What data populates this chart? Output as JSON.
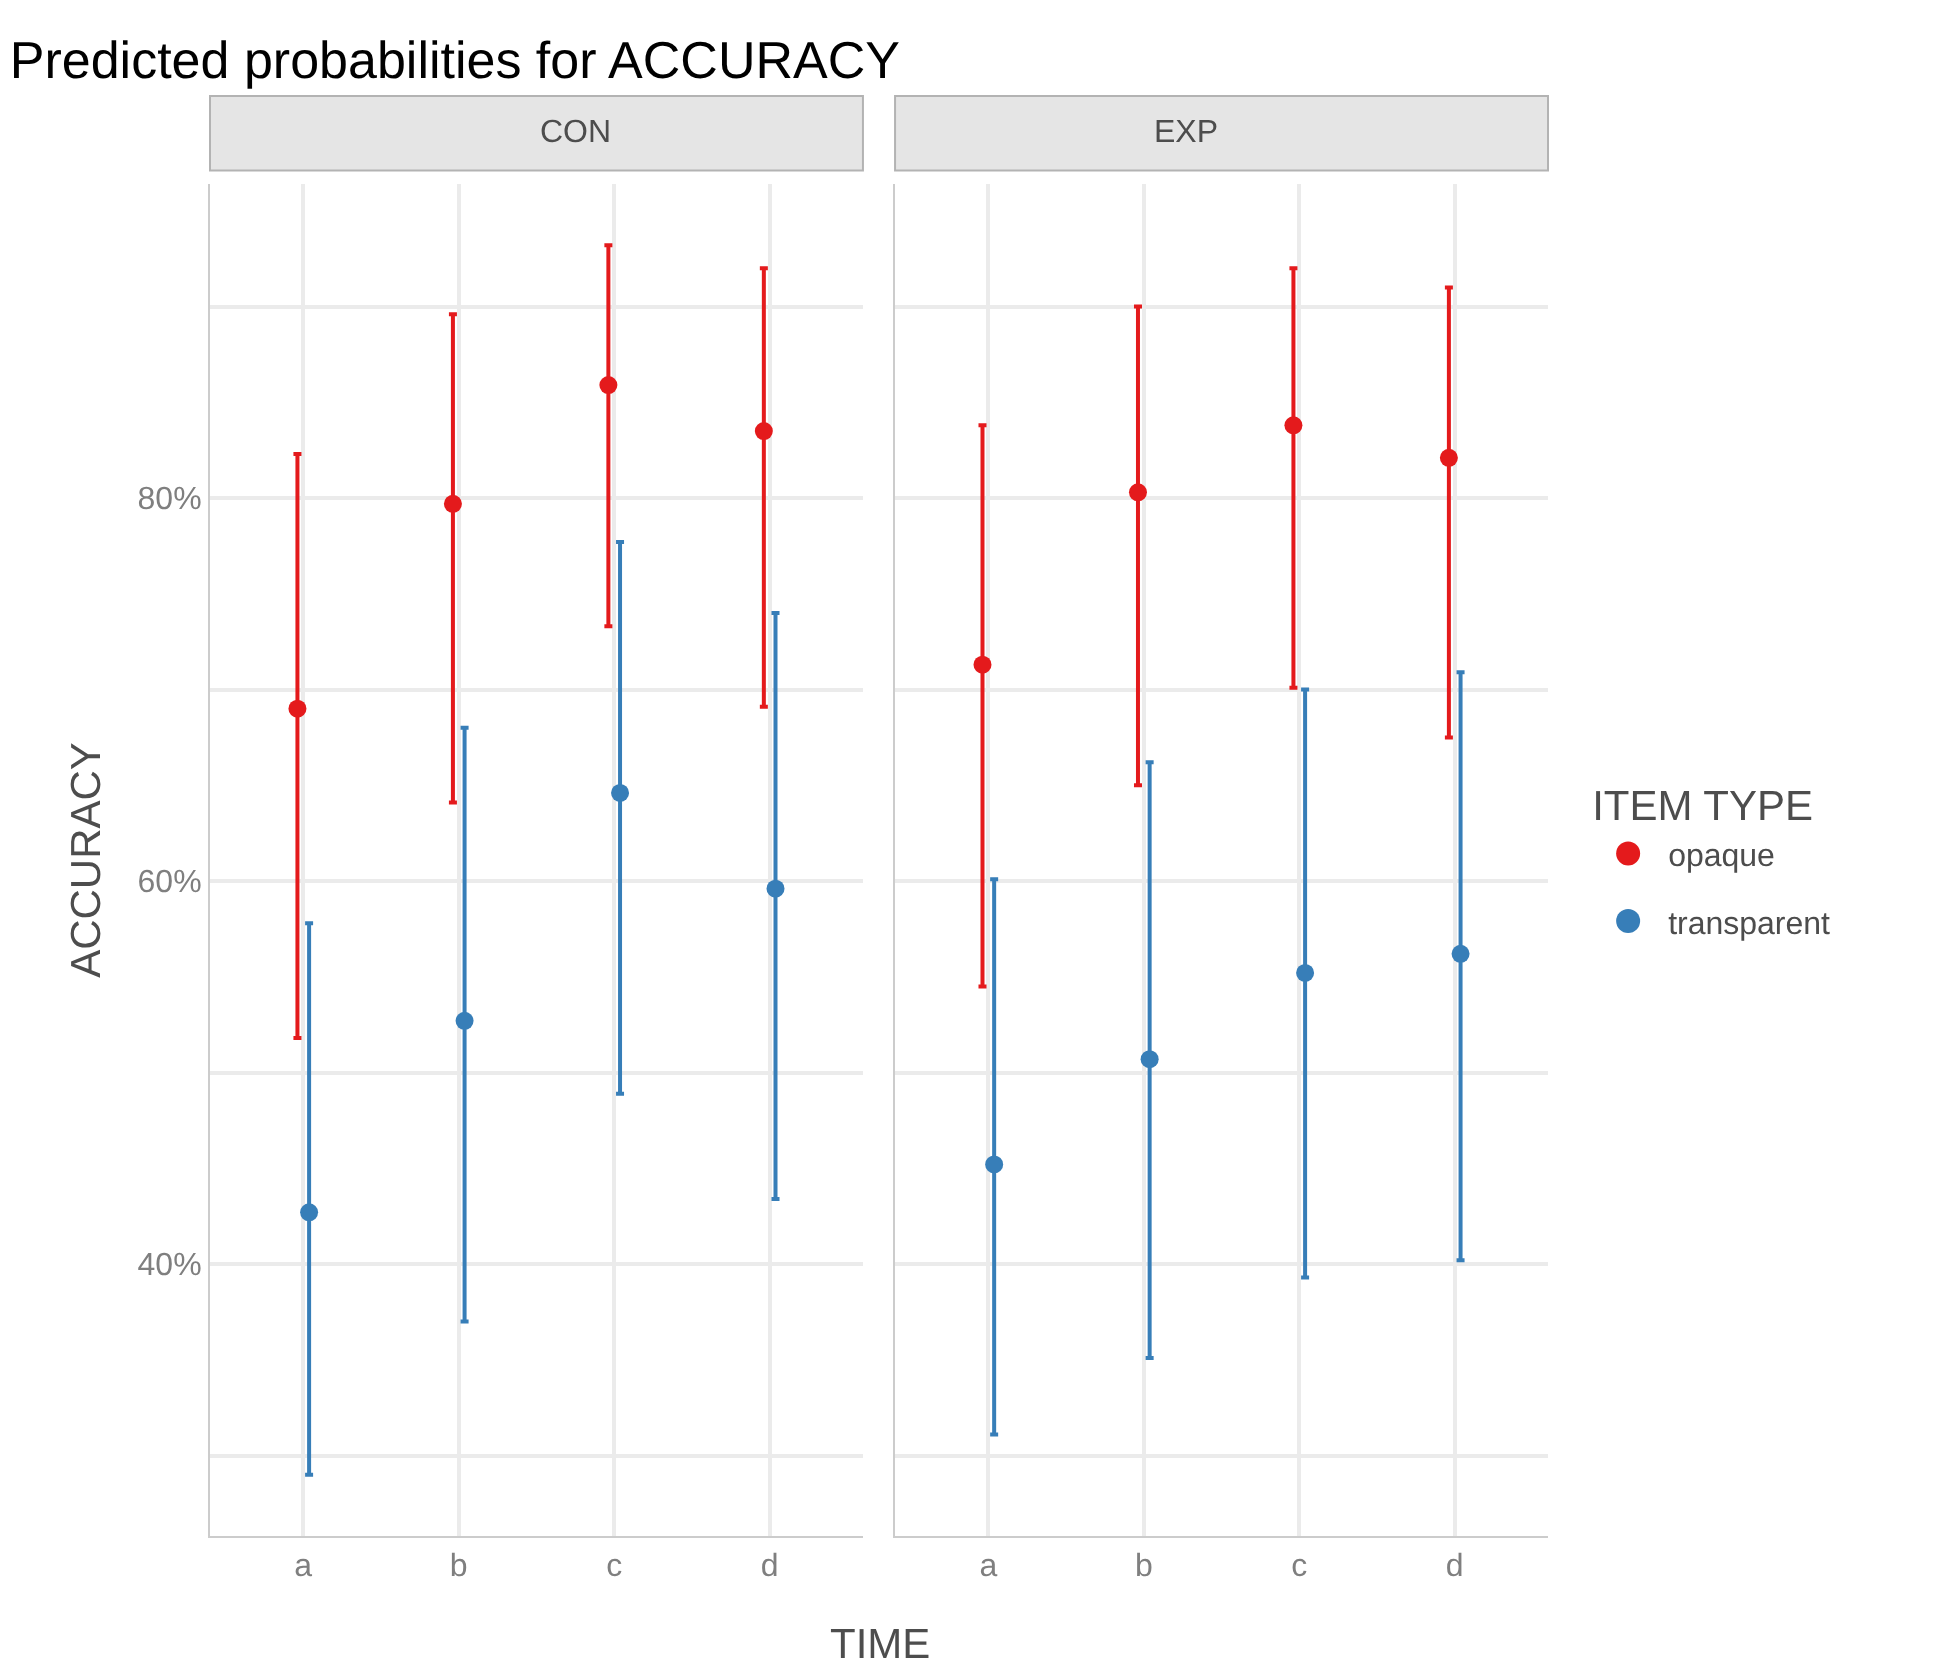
{
  "chart_data": [
    {
      "type": "scatter",
      "title": "Predicted probabilities for ACCURACY",
      "subtitle": "CON",
      "xlabel": "TIME",
      "ylabel": "ACCURACY",
      "legend_title": "ITEM TYPE",
      "legend": "right",
      "grid": true,
      "marker": "circle",
      "categories": [
        "a",
        "b",
        "c",
        "d"
      ],
      "ylim": [
        25.8,
        96.4
      ],
      "yticks": [
        {
          "value": 30,
          "label": null
        },
        {
          "value": 40,
          "label": "40%"
        },
        {
          "value": 50,
          "label": null
        },
        {
          "value": 60,
          "label": "60%"
        },
        {
          "value": 70,
          "label": null
        },
        {
          "value": 80,
          "label": "80%"
        },
        {
          "value": 90,
          "label": null
        }
      ],
      "series": [
        {
          "name": "opaque",
          "color": "#e41a1c",
          "values": [
            69.0,
            79.7,
            85.9,
            83.5
          ],
          "errors": [
            [
              51.8,
              82.3
            ],
            [
              64.1,
              89.6
            ],
            [
              73.3,
              93.2
            ],
            [
              69.1,
              92.0
            ]
          ]
        },
        {
          "name": "transparent",
          "color": "#377eb8",
          "values": [
            42.7,
            52.7,
            64.6,
            59.6
          ],
          "errors": [
            [
              29.0,
              57.8
            ],
            [
              37.0,
              68.0
            ],
            [
              48.9,
              77.7
            ],
            [
              43.4,
              74.0
            ]
          ]
        }
      ]
    },
    {
      "type": "scatter",
      "subtitle": "EXP",
      "grid": true,
      "marker": "circle",
      "tick_labels": "x",
      "categories": [
        "a",
        "b",
        "c",
        "d"
      ],
      "ylim": [
        25.8,
        96.4
      ],
      "yticks": [
        {
          "value": 30,
          "label": null
        },
        {
          "value": 40,
          "label": null
        },
        {
          "value": 50,
          "label": null
        },
        {
          "value": 60,
          "label": null
        },
        {
          "value": 70,
          "label": null
        },
        {
          "value": 80,
          "label": null
        },
        {
          "value": 90,
          "label": null
        }
      ],
      "series": [
        {
          "color": "#e41a1c",
          "values": [
            71.3,
            80.3,
            83.8,
            82.1
          ],
          "errors": [
            [
              54.5,
              83.8
            ],
            [
              65.0,
              90.0
            ],
            [
              70.1,
              92.0
            ],
            [
              67.5,
              91.0
            ]
          ]
        },
        {
          "color": "#377eb8",
          "values": [
            45.2,
            50.7,
            55.2,
            56.2
          ],
          "errors": [
            [
              31.1,
              60.1
            ],
            [
              35.1,
              66.2
            ],
            [
              39.3,
              70.0
            ],
            [
              40.2,
              70.9
            ]
          ]
        }
      ]
    }
  ]
}
